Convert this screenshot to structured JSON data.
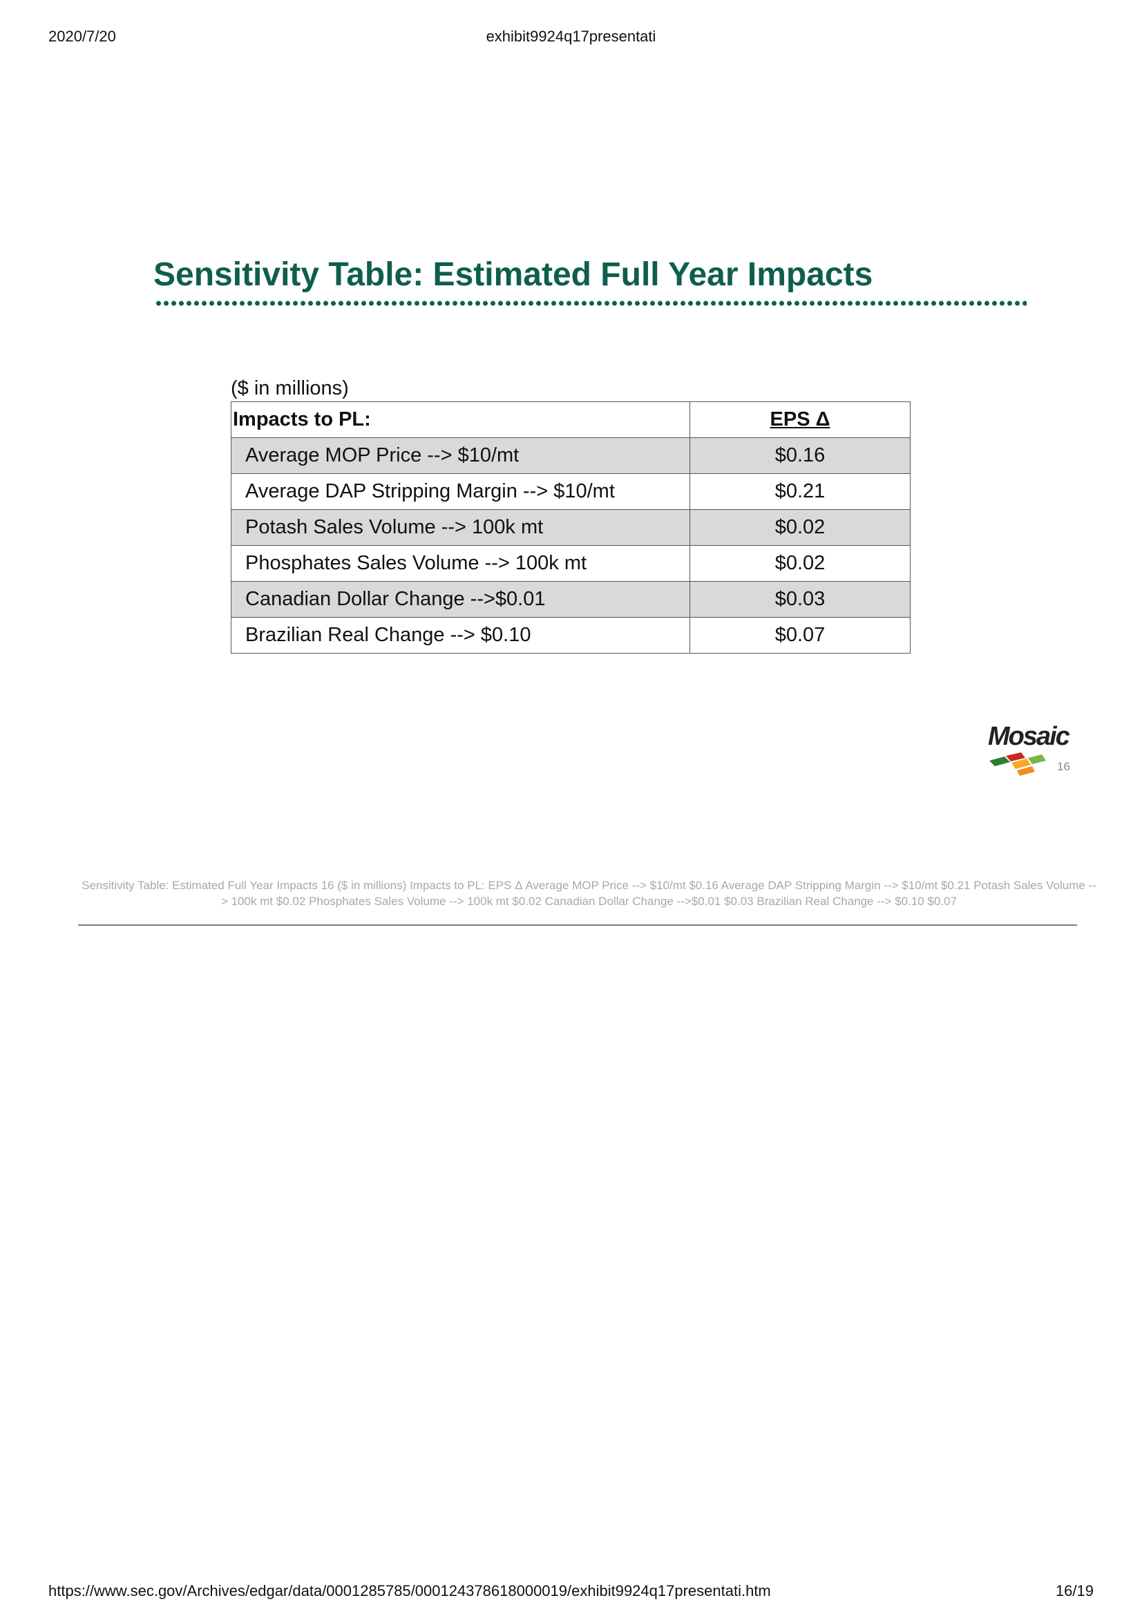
{
  "print_header": {
    "date": "2020/7/20",
    "document": "exhibit9924q17presentati"
  },
  "print_footer": {
    "url": "https://www.sec.gov/Archives/edgar/data/0001285785/000124378618000019/exhibit9924q17presentati.htm",
    "page": "16/19"
  },
  "slide": {
    "title": "Sensitivity Table: Estimated Full Year Impacts",
    "units": "($ in millions)",
    "table": {
      "header": {
        "label": "Impacts to PL:",
        "value": "EPS Δ"
      },
      "rows": [
        {
          "label": "Average MOP Price --> $10/mt",
          "value": "$0.16"
        },
        {
          "label": "Average DAP Stripping Margin --> $10/mt",
          "value": "$0.21"
        },
        {
          "label": "Potash Sales Volume --> 100k mt",
          "value": "$0.02"
        },
        {
          "label": "Phosphates Sales Volume --> 100k mt",
          "value": "$0.02"
        },
        {
          "label": "Canadian Dollar Change -->$0.01",
          "value": "$0.03"
        },
        {
          "label": "Brazilian Real Change --> $0.10",
          "value": "$0.07"
        }
      ]
    },
    "logo": {
      "name": "mosaic-logo",
      "wordmark": "Mosaic"
    },
    "page_number": "16",
    "colors": {
      "title": "#0e5e4d",
      "row_shade": "#d9d9d9"
    }
  },
  "alt_text": "Sensitivity Table: Estimated Full Year Impacts 16 ($ in millions) Impacts to PL: EPS Δ Average MOP Price --> $10/mt $0.16  Average DAP Stripping Margin --> $10/mt $0.21  Potash Sales Volume --> 100k mt $0.02  Phosphates Sales Volume --> 100k mt $0.02  Canadian Dollar Change -->$0.01 $0.03  Brazilian Real Change --> $0.10 $0.07"
}
